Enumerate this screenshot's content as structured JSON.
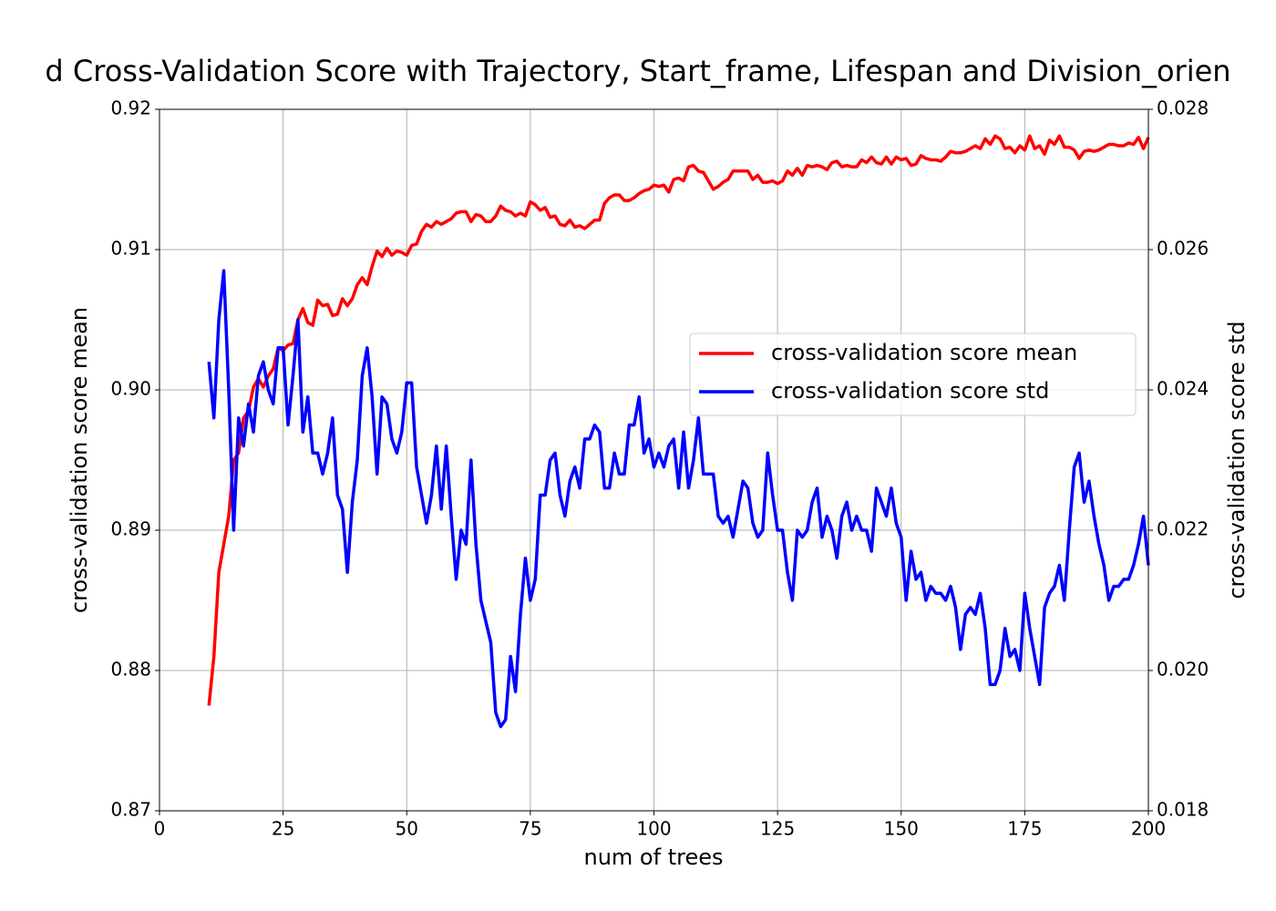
{
  "chart_data": {
    "type": "line",
    "title": "d Cross-Validation Score with Trajectory, Start_frame, Lifespan and Division_orien",
    "xlabel": "num of trees",
    "ylabel": "cross-validation score mean",
    "y2label": "cross-validation score std",
    "x": [
      10,
      11,
      12,
      13,
      14,
      15,
      16,
      17,
      18,
      19,
      20,
      21,
      22,
      23,
      24,
      25,
      26,
      27,
      28,
      29,
      30,
      31,
      32,
      33,
      34,
      35,
      36,
      37,
      38,
      39,
      40,
      41,
      42,
      43,
      44,
      45,
      46,
      47,
      48,
      49,
      50,
      51,
      52,
      53,
      54,
      55,
      56,
      57,
      58,
      59,
      60,
      61,
      62,
      63,
      64,
      65,
      66,
      67,
      68,
      69,
      70,
      71,
      72,
      73,
      74,
      75,
      76,
      77,
      78,
      79,
      80,
      81,
      82,
      83,
      84,
      85,
      86,
      87,
      88,
      89,
      90,
      91,
      92,
      93,
      94,
      95,
      96,
      97,
      98,
      99,
      100,
      101,
      102,
      103,
      104,
      105,
      106,
      107,
      108,
      109,
      110,
      111,
      112,
      113,
      114,
      115,
      116,
      117,
      118,
      119,
      120,
      121,
      122,
      123,
      124,
      125,
      126,
      127,
      128,
      129,
      130,
      131,
      132,
      133,
      134,
      135,
      136,
      137,
      138,
      139,
      140,
      141,
      142,
      143,
      144,
      145,
      146,
      147,
      148,
      149,
      150,
      151,
      152,
      153,
      154,
      155,
      156,
      157,
      158,
      159,
      160,
      161,
      162,
      163,
      164,
      165,
      166,
      167,
      168,
      169,
      170,
      171,
      172,
      173,
      174,
      175,
      176,
      177,
      178,
      179,
      180,
      181,
      182,
      183,
      184,
      185,
      186,
      187,
      188,
      189,
      190,
      191,
      192,
      193,
      194,
      195,
      196,
      197,
      198,
      199,
      200
    ],
    "series": [
      {
        "name": "cross-validation score mean",
        "color": "#ff0000",
        "axis": "y",
        "values": [
          0.8775,
          0.881,
          0.887,
          0.889,
          0.891,
          0.895,
          0.8955,
          0.898,
          0.8985,
          0.9002,
          0.9008,
          0.9002,
          0.901,
          0.9015,
          0.903,
          0.9028,
          0.9032,
          0.9033,
          0.905,
          0.9058,
          0.9048,
          0.9046,
          0.9064,
          0.906,
          0.9061,
          0.9053,
          0.9054,
          0.9065,
          0.906,
          0.9065,
          0.9075,
          0.908,
          0.9075,
          0.9088,
          0.9099,
          0.9095,
          0.9101,
          0.9096,
          0.9099,
          0.9098,
          0.9096,
          0.9103,
          0.9104,
          0.9113,
          0.9118,
          0.9116,
          0.912,
          0.9118,
          0.912,
          0.9122,
          0.9126,
          0.9127,
          0.9127,
          0.912,
          0.9125,
          0.9124,
          0.912,
          0.912,
          0.9124,
          0.9131,
          0.9128,
          0.9127,
          0.9124,
          0.9126,
          0.9124,
          0.9134,
          0.9132,
          0.9128,
          0.913,
          0.9123,
          0.9124,
          0.9118,
          0.9117,
          0.9121,
          0.9116,
          0.9117,
          0.9115,
          0.9118,
          0.9121,
          0.9121,
          0.9133,
          0.9137,
          0.9139,
          0.9139,
          0.9135,
          0.9135,
          0.9137,
          0.914,
          0.9142,
          0.9143,
          0.9146,
          0.9145,
          0.9146,
          0.9141,
          0.915,
          0.9151,
          0.9149,
          0.9159,
          0.916,
          0.9156,
          0.9155,
          0.9149,
          0.9143,
          0.9145,
          0.9148,
          0.915,
          0.9156,
          0.9156,
          0.9156,
          0.9156,
          0.915,
          0.9153,
          0.9148,
          0.9148,
          0.9149,
          0.9147,
          0.9149,
          0.9156,
          0.9153,
          0.9158,
          0.9153,
          0.916,
          0.9159,
          0.916,
          0.9159,
          0.9157,
          0.9162,
          0.9163,
          0.9159,
          0.916,
          0.9159,
          0.9159,
          0.9164,
          0.9162,
          0.9166,
          0.9162,
          0.9161,
          0.9166,
          0.9161,
          0.9166,
          0.9164,
          0.9165,
          0.916,
          0.9161,
          0.9167,
          0.9165,
          0.9164,
          0.9164,
          0.9163,
          0.9166,
          0.917,
          0.9169,
          0.9169,
          0.917,
          0.9172,
          0.9174,
          0.9172,
          0.9179,
          0.9175,
          0.9181,
          0.9179,
          0.9172,
          0.9173,
          0.9169,
          0.9174,
          0.9171,
          0.9181,
          0.9172,
          0.9174,
          0.9168,
          0.9178,
          0.9175,
          0.9181,
          0.9173,
          0.9173,
          0.9171,
          0.9165,
          0.917,
          0.9171,
          0.917,
          0.9171,
          0.9173,
          0.9175,
          0.9175,
          0.9174,
          0.9174,
          0.9176,
          0.9175,
          0.918,
          0.9172,
          0.918
        ]
      },
      {
        "name": "cross-validation score std",
        "color": "#0000ff",
        "axis": "y2",
        "values": [
          0.0244,
          0.0236,
          0.025,
          0.0257,
          0.024,
          0.022,
          0.0236,
          0.0232,
          0.0238,
          0.0234,
          0.0242,
          0.0244,
          0.024,
          0.0238,
          0.0246,
          0.0246,
          0.0235,
          0.0242,
          0.025,
          0.0234,
          0.0239,
          0.0231,
          0.0231,
          0.0228,
          0.0231,
          0.0236,
          0.0225,
          0.0223,
          0.0214,
          0.0224,
          0.023,
          0.0242,
          0.0246,
          0.0239,
          0.0228,
          0.0239,
          0.0238,
          0.0233,
          0.0231,
          0.0234,
          0.0241,
          0.0241,
          0.0229,
          0.0225,
          0.0221,
          0.0225,
          0.0232,
          0.0223,
          0.0232,
          0.0222,
          0.0213,
          0.022,
          0.0218,
          0.023,
          0.0218,
          0.021,
          0.0207,
          0.0204,
          0.0194,
          0.0192,
          0.0193,
          0.0202,
          0.0197,
          0.0208,
          0.0216,
          0.021,
          0.0213,
          0.0225,
          0.0225,
          0.023,
          0.0231,
          0.0225,
          0.0222,
          0.0227,
          0.0229,
          0.0226,
          0.0233,
          0.0233,
          0.0235,
          0.0234,
          0.0226,
          0.0226,
          0.0231,
          0.0228,
          0.0228,
          0.0235,
          0.0235,
          0.0239,
          0.0231,
          0.0233,
          0.0229,
          0.0231,
          0.0229,
          0.0232,
          0.0233,
          0.0226,
          0.0234,
          0.0226,
          0.023,
          0.0236,
          0.0228,
          0.0228,
          0.0228,
          0.0222,
          0.0221,
          0.0222,
          0.0219,
          0.0223,
          0.0227,
          0.0226,
          0.0221,
          0.0219,
          0.022,
          0.0231,
          0.0225,
          0.022,
          0.022,
          0.0214,
          0.021,
          0.022,
          0.0219,
          0.022,
          0.0224,
          0.0226,
          0.0219,
          0.0222,
          0.022,
          0.0216,
          0.0222,
          0.0224,
          0.022,
          0.0222,
          0.022,
          0.022,
          0.0217,
          0.0226,
          0.0224,
          0.0222,
          0.0226,
          0.0221,
          0.0219,
          0.021,
          0.0217,
          0.0213,
          0.0214,
          0.021,
          0.0212,
          0.0211,
          0.0211,
          0.021,
          0.0212,
          0.0209,
          0.0203,
          0.0208,
          0.0209,
          0.0208,
          0.0211,
          0.0206,
          0.0198,
          0.0198,
          0.02,
          0.0206,
          0.0202,
          0.0203,
          0.02,
          0.0211,
          0.0206,
          0.0202,
          0.0198,
          0.0209,
          0.0211,
          0.0212,
          0.0215,
          0.021,
          0.022,
          0.0229,
          0.0231,
          0.0224,
          0.0227,
          0.0222,
          0.0218,
          0.0215,
          0.021,
          0.0212,
          0.0212,
          0.0213,
          0.0213,
          0.0215,
          0.0218,
          0.0222,
          0.0215
        ]
      }
    ],
    "xlim": [
      0,
      200
    ],
    "xticks": [
      0,
      25,
      50,
      75,
      100,
      125,
      150,
      175,
      200
    ],
    "ylim": [
      0.87,
      0.92
    ],
    "yticks": [
      0.87,
      0.88,
      0.89,
      {
        "value": 0.9,
        "label": "0.90"
      },
      0.91,
      0.92
    ],
    "y2lim": [
      0.018,
      0.028
    ],
    "y2ticks": [
      0.018,
      {
        "value": 0.02,
        "label": "0.020"
      },
      0.022,
      0.024,
      0.026,
      0.028
    ],
    "grid": true,
    "legend": "center right"
  }
}
